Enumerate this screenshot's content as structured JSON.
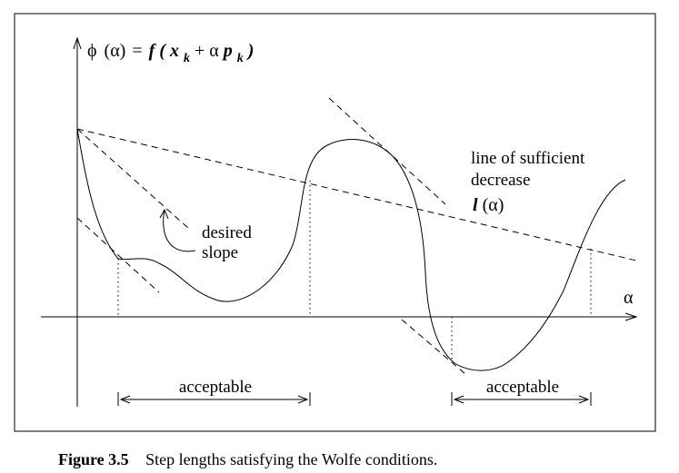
{
  "figure": {
    "ylabel_phi": "ϕ",
    "ylabel_alpha_arg": "(α)",
    "ylabel_eq": "=",
    "ylabel_f": "f",
    "ylabel_paren_open": "(",
    "ylabel_x": "x",
    "ylabel_k1": "k",
    "ylabel_plus": "+",
    "ylabel_alpha": "α",
    "ylabel_p": "p",
    "ylabel_k2": "k",
    "ylabel_paren_close": ")",
    "xlabel": "α",
    "sufficient_decrease_line1": "line of sufficient",
    "sufficient_decrease_line2": "decrease",
    "l_label_l": "l",
    "l_label_arg": "(α)",
    "desired_line1": "desired",
    "desired_line2": "slope",
    "acceptable_left": "acceptable",
    "acceptable_right": "acceptable"
  },
  "caption": {
    "label": "Figure 3.5",
    "text": "Step lengths satisfying the Wolfe conditions."
  }
}
